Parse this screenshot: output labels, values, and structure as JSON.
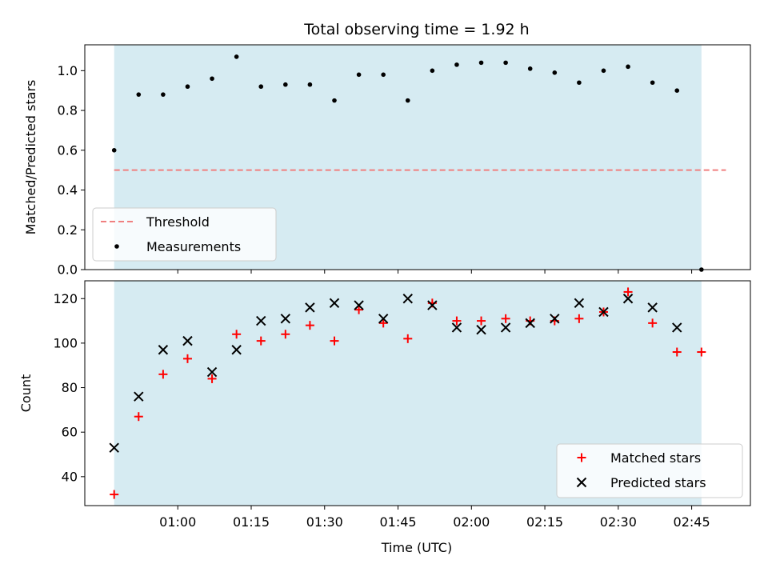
{
  "title": "Total observing time = 1.92 h",
  "colors": {
    "shade": "#add8e6",
    "threshold": "#f08080",
    "measurement": "#000000",
    "matched": "#ff0000",
    "predicted": "#000000"
  },
  "chart_data": [
    {
      "type": "scatter",
      "ylabel": "Matched/Predicted stars",
      "xlim": [
        "00:41",
        "02:57"
      ],
      "ylim": [
        0,
        1.13
      ],
      "yticks": [
        "0.0",
        "0.2",
        "0.4",
        "0.6",
        "0.8",
        "1.0"
      ],
      "observing_window": [
        "00:47",
        "02:47"
      ],
      "legend": {
        "location": "lower left",
        "entries": [
          "Threshold",
          "Measurements"
        ]
      },
      "threshold": {
        "name": "Threshold",
        "value": 0.5,
        "x_range": [
          "00:47",
          "02:52"
        ],
        "style": "dashed"
      },
      "series": [
        {
          "name": "Measurements",
          "x": [
            "00:47",
            "00:52",
            "00:57",
            "01:02",
            "01:07",
            "01:12",
            "01:17",
            "01:22",
            "01:27",
            "01:32",
            "01:37",
            "01:42",
            "01:47",
            "01:52",
            "01:57",
            "02:02",
            "02:07",
            "02:12",
            "02:17",
            "02:22",
            "02:27",
            "02:32",
            "02:37",
            "02:42",
            "02:47",
            "02:52"
          ],
          "y": [
            0.6,
            0.88,
            0.88,
            0.92,
            0.96,
            1.07,
            0.92,
            0.93,
            0.93,
            0.85,
            0.98,
            0.98,
            0.85,
            1.0,
            1.03,
            1.04,
            1.04,
            1.01,
            0.99,
            0.94,
            1.0,
            1.02,
            0.94,
            0.9,
            0.0,
            null
          ]
        }
      ]
    },
    {
      "type": "scatter",
      "xlabel": "Time (UTC)",
      "ylabel": "Count",
      "xlim": [
        "00:41",
        "02:57"
      ],
      "ylim": [
        27,
        128
      ],
      "yticks": [
        "40",
        "60",
        "80",
        "100",
        "120"
      ],
      "xticks": [
        "01:00",
        "01:15",
        "01:30",
        "01:45",
        "02:00",
        "02:15",
        "02:30",
        "02:45"
      ],
      "observing_window": [
        "00:47",
        "02:47"
      ],
      "legend": {
        "location": "lower right",
        "entries": [
          "Matched stars",
          "Predicted stars"
        ]
      },
      "series": [
        {
          "name": "Matched stars",
          "marker": "+",
          "x": [
            "00:47",
            "00:52",
            "00:57",
            "01:02",
            "01:07",
            "01:12",
            "01:17",
            "01:22",
            "01:27",
            "01:32",
            "01:37",
            "01:42",
            "01:47",
            "01:52",
            "01:57",
            "02:02",
            "02:07",
            "02:12",
            "02:17",
            "02:22",
            "02:27",
            "02:32",
            "02:37",
            "02:42",
            "02:47",
            "02:52"
          ],
          "y": [
            32,
            67,
            86,
            93,
            84,
            104,
            101,
            104,
            108,
            101,
            115,
            109,
            102,
            118,
            110,
            110,
            111,
            110,
            110,
            111,
            114,
            123,
            109,
            96,
            96,
            null
          ]
        },
        {
          "name": "Predicted stars",
          "marker": "x",
          "x": [
            "00:47",
            "00:52",
            "00:57",
            "01:02",
            "01:07",
            "01:12",
            "01:17",
            "01:22",
            "01:27",
            "01:32",
            "01:37",
            "01:42",
            "01:47",
            "01:52",
            "01:57",
            "02:02",
            "02:07",
            "02:12",
            "02:17",
            "02:22",
            "02:27",
            "02:32",
            "02:37",
            "02:42",
            "02:47"
          ],
          "y": [
            53,
            76,
            97,
            101,
            87,
            97,
            110,
            111,
            116,
            118,
            117,
            111,
            120,
            117,
            107,
            106,
            107,
            109,
            111,
            118,
            114,
            120,
            116,
            107,
            null
          ]
        }
      ]
    }
  ]
}
